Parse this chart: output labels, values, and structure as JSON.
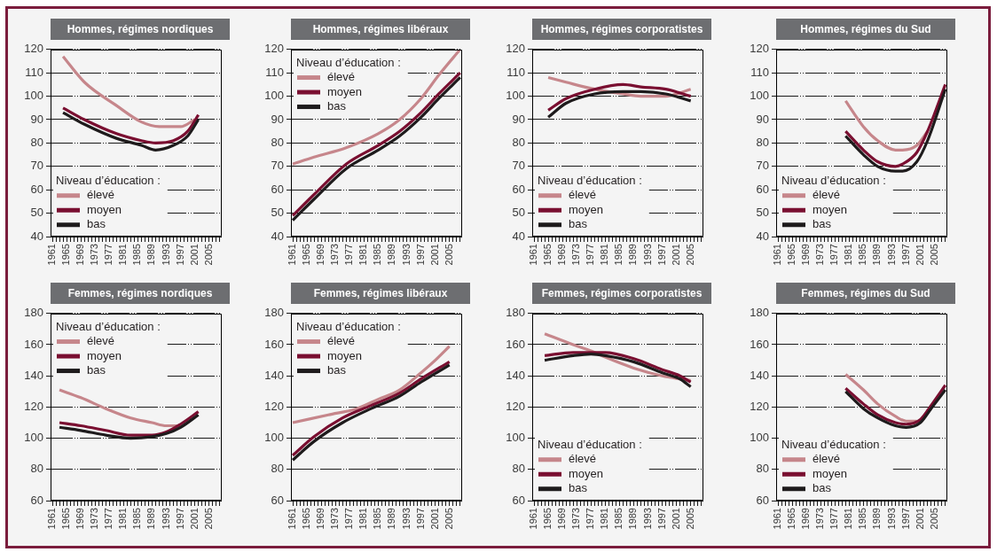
{
  "chart_data": [
    {
      "type": "line",
      "title": "Hommes, régimes nordiques",
      "legend_title": "Niveau d’éducation :",
      "legend": "bottom left",
      "grid": "y",
      "xlim": [
        1960.5,
        2008.5
      ],
      "ylim": [
        40,
        120
      ],
      "yticks": [
        40,
        50,
        60,
        70,
        80,
        90,
        100,
        110,
        120
      ],
      "xticks": [
        1961,
        {
          "value": 1962,
          "label": null
        },
        {
          "value": 1963,
          "label": null
        },
        {
          "value": 1964,
          "label": null
        },
        1965,
        {
          "value": 1966,
          "label": null
        },
        {
          "value": 1967,
          "label": null
        },
        {
          "value": 1968,
          "label": null
        },
        1969,
        {
          "value": 1970,
          "label": null
        },
        {
          "value": 1971,
          "label": null
        },
        {
          "value": 1972,
          "label": null
        },
        1973,
        {
          "value": 1974,
          "label": null
        },
        {
          "value": 1975,
          "label": null
        },
        {
          "value": 1976,
          "label": null
        },
        1977,
        {
          "value": 1978,
          "label": null
        },
        {
          "value": 1979,
          "label": null
        },
        {
          "value": 1980,
          "label": null
        },
        1981,
        {
          "value": 1982,
          "label": null
        },
        {
          "value": 1983,
          "label": null
        },
        {
          "value": 1984,
          "label": null
        },
        1985,
        {
          "value": 1986,
          "label": null
        },
        {
          "value": 1987,
          "label": null
        },
        {
          "value": 1988,
          "label": null
        },
        1989,
        {
          "value": 1990,
          "label": null
        },
        {
          "value": 1991,
          "label": null
        },
        {
          "value": 1992,
          "label": null
        },
        1993,
        {
          "value": 1994,
          "label": null
        },
        {
          "value": 1995,
          "label": null
        },
        {
          "value": 1996,
          "label": null
        },
        1997,
        {
          "value": 1998,
          "label": null
        },
        {
          "value": 1999,
          "label": null
        },
        {
          "value": 2000,
          "label": null
        },
        2001,
        {
          "value": 2002,
          "label": null
        },
        {
          "value": 2003,
          "label": null
        },
        {
          "value": 2004,
          "label": null
        },
        2005,
        {
          "value": 2006,
          "label": null
        },
        {
          "value": 2007,
          "label": null
        },
        {
          "value": 2008,
          "label": null
        }
      ],
      "series": [
        {
          "name": "élevé",
          "color": "#c6868b",
          "x": [
            1964,
            1970,
            1979,
            1986,
            1991,
            1997,
            2001
          ],
          "values": [
            117,
            106,
            96,
            89,
            87,
            87,
            90
          ]
        },
        {
          "name": "moyen",
          "color": "#7a0f31",
          "x": [
            1964,
            1970,
            1979,
            1986,
            1990,
            1995,
            1999,
            2002
          ],
          "values": [
            95,
            90,
            84,
            81,
            80,
            81,
            85,
            92
          ]
        },
        {
          "name": "bas",
          "color": "#1e1b1c",
          "x": [
            1964,
            1970,
            1979,
            1986,
            1990,
            1995,
            1999,
            2002
          ],
          "values": [
            93,
            88,
            82,
            79,
            77,
            79,
            83,
            90
          ]
        }
      ]
    },
    {
      "type": "line",
      "title": "Hommes, régimes libéraux",
      "legend_title": "Niveau d’éducation :",
      "legend": "top left",
      "grid": "y",
      "xlim": [
        1960.5,
        2008.5
      ],
      "ylim": [
        40,
        120
      ],
      "yticks": [
        40,
        50,
        60,
        70,
        80,
        90,
        100,
        110,
        120
      ],
      "xticks": [
        1961,
        {
          "value": 1962,
          "label": null
        },
        {
          "value": 1963,
          "label": null
        },
        {
          "value": 1964,
          "label": null
        },
        1965,
        {
          "value": 1966,
          "label": null
        },
        {
          "value": 1967,
          "label": null
        },
        {
          "value": 1968,
          "label": null
        },
        1969,
        {
          "value": 1970,
          "label": null
        },
        {
          "value": 1971,
          "label": null
        },
        {
          "value": 1972,
          "label": null
        },
        1973,
        {
          "value": 1974,
          "label": null
        },
        {
          "value": 1975,
          "label": null
        },
        {
          "value": 1976,
          "label": null
        },
        1977,
        {
          "value": 1978,
          "label": null
        },
        {
          "value": 1979,
          "label": null
        },
        {
          "value": 1980,
          "label": null
        },
        1981,
        {
          "value": 1982,
          "label": null
        },
        {
          "value": 1983,
          "label": null
        },
        {
          "value": 1984,
          "label": null
        },
        1985,
        {
          "value": 1986,
          "label": null
        },
        {
          "value": 1987,
          "label": null
        },
        {
          "value": 1988,
          "label": null
        },
        1989,
        {
          "value": 1990,
          "label": null
        },
        {
          "value": 1991,
          "label": null
        },
        {
          "value": 1992,
          "label": null
        },
        1993,
        {
          "value": 1994,
          "label": null
        },
        {
          "value": 1995,
          "label": null
        },
        {
          "value": 1996,
          "label": null
        },
        1997,
        {
          "value": 1998,
          "label": null
        },
        {
          "value": 1999,
          "label": null
        },
        {
          "value": 2000,
          "label": null
        },
        2001,
        {
          "value": 2002,
          "label": null
        },
        {
          "value": 2003,
          "label": null
        },
        {
          "value": 2004,
          "label": null
        },
        2005,
        {
          "value": 2006,
          "label": null
        },
        {
          "value": 2007,
          "label": null
        },
        {
          "value": 2008,
          "label": null
        }
      ],
      "series": [
        {
          "name": "élevé",
          "color": "#c6868b",
          "x": [
            1961,
            1967,
            1976,
            1985,
            1991,
            1997,
            2002,
            2008
          ],
          "values": [
            71,
            74,
            78,
            84,
            90,
            99,
            109,
            120
          ]
        },
        {
          "name": "moyen",
          "color": "#7a0f31",
          "x": [
            1961,
            1967,
            1976,
            1985,
            1991,
            1997,
            2002,
            2008
          ],
          "values": [
            49,
            58,
            71,
            79,
            85,
            93,
            101,
            110
          ]
        },
        {
          "name": "bas",
          "color": "#1e1b1c",
          "x": [
            1961,
            1967,
            1976,
            1985,
            1991,
            1997,
            2002,
            2008
          ],
          "values": [
            47,
            56,
            69,
            77,
            83,
            91,
            99,
            108
          ]
        }
      ]
    },
    {
      "type": "line",
      "title": "Hommes, régimes corporatistes",
      "legend_title": "Niveau d’éducation :",
      "legend": "bottom left",
      "grid": "y",
      "xlim": [
        1960.5,
        2008.5
      ],
      "ylim": [
        40,
        120
      ],
      "yticks": [
        40,
        50,
        60,
        70,
        80,
        90,
        100,
        110,
        120
      ],
      "xticks": [
        1961,
        {
          "value": 1962,
          "label": null
        },
        {
          "value": 1963,
          "label": null
        },
        {
          "value": 1964,
          "label": null
        },
        1965,
        {
          "value": 1966,
          "label": null
        },
        {
          "value": 1967,
          "label": null
        },
        {
          "value": 1968,
          "label": null
        },
        1969,
        {
          "value": 1970,
          "label": null
        },
        {
          "value": 1971,
          "label": null
        },
        {
          "value": 1972,
          "label": null
        },
        1973,
        {
          "value": 1974,
          "label": null
        },
        {
          "value": 1975,
          "label": null
        },
        {
          "value": 1976,
          "label": null
        },
        1977,
        {
          "value": 1978,
          "label": null
        },
        {
          "value": 1979,
          "label": null
        },
        {
          "value": 1980,
          "label": null
        },
        1981,
        {
          "value": 1982,
          "label": null
        },
        {
          "value": 1983,
          "label": null
        },
        {
          "value": 1984,
          "label": null
        },
        1985,
        {
          "value": 1986,
          "label": null
        },
        {
          "value": 1987,
          "label": null
        },
        {
          "value": 1988,
          "label": null
        },
        1989,
        {
          "value": 1990,
          "label": null
        },
        {
          "value": 1991,
          "label": null
        },
        {
          "value": 1992,
          "label": null
        },
        1993,
        {
          "value": 1994,
          "label": null
        },
        {
          "value": 1995,
          "label": null
        },
        {
          "value": 1996,
          "label": null
        },
        1997,
        {
          "value": 1998,
          "label": null
        },
        {
          "value": 1999,
          "label": null
        },
        {
          "value": 2000,
          "label": null
        },
        2001,
        {
          "value": 2002,
          "label": null
        },
        {
          "value": 2003,
          "label": null
        },
        {
          "value": 2004,
          "label": null
        },
        2005,
        {
          "value": 2006,
          "label": null
        },
        {
          "value": 2007,
          "label": null
        },
        {
          "value": 2008,
          "label": null
        }
      ],
      "series": [
        {
          "name": "élevé",
          "color": "#c6868b",
          "x": [
            1965,
            1970,
            1978,
            1986,
            1991,
            1998,
            2005
          ],
          "values": [
            108,
            106,
            103,
            101,
            100,
            100,
            103
          ]
        },
        {
          "name": "moyen",
          "color": "#7a0f31",
          "x": [
            1965,
            1970,
            1978,
            1986,
            1991,
            1998,
            2005
          ],
          "values": [
            94,
            99,
            103,
            105,
            104,
            103,
            100
          ]
        },
        {
          "name": "bas",
          "color": "#1e1b1c",
          "x": [
            1965,
            1970,
            1978,
            1986,
            1991,
            1998,
            2005
          ],
          "values": [
            91,
            97,
            101,
            102,
            102,
            101,
            98
          ]
        }
      ]
    },
    {
      "type": "line",
      "title": "Hommes, régimes du Sud",
      "legend_title": "Niveau d’éducation :",
      "legend": "bottom left",
      "grid": "y",
      "xlim": [
        1960.5,
        2008.5
      ],
      "ylim": [
        40,
        120
      ],
      "yticks": [
        40,
        50,
        60,
        70,
        80,
        90,
        100,
        110,
        120
      ],
      "xticks": [
        1961,
        {
          "value": 1962,
          "label": null
        },
        {
          "value": 1963,
          "label": null
        },
        {
          "value": 1964,
          "label": null
        },
        1965,
        {
          "value": 1966,
          "label": null
        },
        {
          "value": 1967,
          "label": null
        },
        {
          "value": 1968,
          "label": null
        },
        1969,
        {
          "value": 1970,
          "label": null
        },
        {
          "value": 1971,
          "label": null
        },
        {
          "value": 1972,
          "label": null
        },
        1973,
        {
          "value": 1974,
          "label": null
        },
        {
          "value": 1975,
          "label": null
        },
        {
          "value": 1976,
          "label": null
        },
        1977,
        {
          "value": 1978,
          "label": null
        },
        {
          "value": 1979,
          "label": null
        },
        {
          "value": 1980,
          "label": null
        },
        1981,
        {
          "value": 1982,
          "label": null
        },
        {
          "value": 1983,
          "label": null
        },
        {
          "value": 1984,
          "label": null
        },
        1985,
        {
          "value": 1986,
          "label": null
        },
        {
          "value": 1987,
          "label": null
        },
        {
          "value": 1988,
          "label": null
        },
        1989,
        {
          "value": 1990,
          "label": null
        },
        {
          "value": 1991,
          "label": null
        },
        {
          "value": 1992,
          "label": null
        },
        1993,
        {
          "value": 1994,
          "label": null
        },
        {
          "value": 1995,
          "label": null
        },
        {
          "value": 1996,
          "label": null
        },
        1997,
        {
          "value": 1998,
          "label": null
        },
        {
          "value": 1999,
          "label": null
        },
        {
          "value": 2000,
          "label": null
        },
        2001,
        {
          "value": 2002,
          "label": null
        },
        {
          "value": 2003,
          "label": null
        },
        {
          "value": 2004,
          "label": null
        },
        2005,
        {
          "value": 2006,
          "label": null
        },
        {
          "value": 2007,
          "label": null
        },
        {
          "value": 2008,
          "label": null
        }
      ],
      "series": [
        {
          "name": "élevé",
          "color": "#c6868b",
          "x": [
            1980,
            1985,
            1989,
            1994,
            1996,
            2000,
            2003
          ],
          "values": [
            98,
            87,
            81,
            77,
            77,
            79,
            85
          ]
        },
        {
          "name": "moyen",
          "color": "#7a0f31",
          "x": [
            1980,
            1985,
            1989,
            1994,
            1996,
            2000,
            2003,
            2008
          ],
          "values": [
            85,
            77,
            72,
            70,
            71,
            76,
            85,
            105
          ]
        },
        {
          "name": "bas",
          "color": "#1e1b1c",
          "x": [
            1980,
            1985,
            1989,
            1994,
            1996,
            2000,
            2003,
            2008
          ],
          "values": [
            83,
            75,
            70,
            68,
            68,
            72,
            81,
            103
          ]
        }
      ]
    },
    {
      "type": "line",
      "title": "Femmes, régimes nordiques",
      "legend_title": "Niveau d’éducation :",
      "legend": "top left",
      "grid": "y",
      "xlim": [
        1960.5,
        2008.5
      ],
      "ylim": [
        60,
        180
      ],
      "yticks": [
        60,
        80,
        100,
        120,
        140,
        160,
        180
      ],
      "xticks": [
        1961,
        {
          "value": 1962,
          "label": null
        },
        {
          "value": 1963,
          "label": null
        },
        {
          "value": 1964,
          "label": null
        },
        1965,
        {
          "value": 1966,
          "label": null
        },
        {
          "value": 1967,
          "label": null
        },
        {
          "value": 1968,
          "label": null
        },
        1969,
        {
          "value": 1970,
          "label": null
        },
        {
          "value": 1971,
          "label": null
        },
        {
          "value": 1972,
          "label": null
        },
        1973,
        {
          "value": 1974,
          "label": null
        },
        {
          "value": 1975,
          "label": null
        },
        {
          "value": 1976,
          "label": null
        },
        1977,
        {
          "value": 1978,
          "label": null
        },
        {
          "value": 1979,
          "label": null
        },
        {
          "value": 1980,
          "label": null
        },
        1981,
        {
          "value": 1982,
          "label": null
        },
        {
          "value": 1983,
          "label": null
        },
        {
          "value": 1984,
          "label": null
        },
        1985,
        {
          "value": 1986,
          "label": null
        },
        {
          "value": 1987,
          "label": null
        },
        {
          "value": 1988,
          "label": null
        },
        1989,
        {
          "value": 1990,
          "label": null
        },
        {
          "value": 1991,
          "label": null
        },
        {
          "value": 1992,
          "label": null
        },
        1993,
        {
          "value": 1994,
          "label": null
        },
        {
          "value": 1995,
          "label": null
        },
        {
          "value": 1996,
          "label": null
        },
        1997,
        {
          "value": 1998,
          "label": null
        },
        {
          "value": 1999,
          "label": null
        },
        {
          "value": 2000,
          "label": null
        },
        2001,
        {
          "value": 2002,
          "label": null
        },
        {
          "value": 2003,
          "label": null
        },
        {
          "value": 2004,
          "label": null
        },
        2005,
        {
          "value": 2006,
          "label": null
        },
        {
          "value": 2007,
          "label": null
        },
        {
          "value": 2008,
          "label": null
        }
      ],
      "series": [
        {
          "name": "élevé",
          "color": "#c6868b",
          "x": [
            1963,
            1969,
            1976,
            1983,
            1989,
            1993,
            1997
          ],
          "values": [
            131,
            126,
            119,
            113,
            110,
            108,
            108
          ]
        },
        {
          "name": "moyen",
          "color": "#7a0f31",
          "x": [
            1963,
            1969,
            1976,
            1983,
            1989,
            1993,
            1997,
            2002
          ],
          "values": [
            110,
            108,
            105,
            102,
            102,
            104,
            109,
            117
          ]
        },
        {
          "name": "bas",
          "color": "#1e1b1c",
          "x": [
            1963,
            1969,
            1976,
            1983,
            1989,
            1993,
            1997,
            2002
          ],
          "values": [
            107,
            105,
            102,
            100,
            101,
            103,
            107,
            115
          ]
        }
      ]
    },
    {
      "type": "line",
      "title": "Femmes, régimes libéraux",
      "legend_title": "Niveau d’éducation :",
      "legend": "top left",
      "grid": "y",
      "xlim": [
        1960.5,
        2008.5
      ],
      "ylim": [
        60,
        180
      ],
      "yticks": [
        60,
        80,
        100,
        120,
        140,
        160,
        180
      ],
      "xticks": [
        1961,
        {
          "value": 1962,
          "label": null
        },
        {
          "value": 1963,
          "label": null
        },
        {
          "value": 1964,
          "label": null
        },
        1965,
        {
          "value": 1966,
          "label": null
        },
        {
          "value": 1967,
          "label": null
        },
        {
          "value": 1968,
          "label": null
        },
        1969,
        {
          "value": 1970,
          "label": null
        },
        {
          "value": 1971,
          "label": null
        },
        {
          "value": 1972,
          "label": null
        },
        1973,
        {
          "value": 1974,
          "label": null
        },
        {
          "value": 1975,
          "label": null
        },
        {
          "value": 1976,
          "label": null
        },
        1977,
        {
          "value": 1978,
          "label": null
        },
        {
          "value": 1979,
          "label": null
        },
        {
          "value": 1980,
          "label": null
        },
        1981,
        {
          "value": 1982,
          "label": null
        },
        {
          "value": 1983,
          "label": null
        },
        {
          "value": 1984,
          "label": null
        },
        1985,
        {
          "value": 1986,
          "label": null
        },
        {
          "value": 1987,
          "label": null
        },
        {
          "value": 1988,
          "label": null
        },
        1989,
        {
          "value": 1990,
          "label": null
        },
        {
          "value": 1991,
          "label": null
        },
        {
          "value": 1992,
          "label": null
        },
        1993,
        {
          "value": 1994,
          "label": null
        },
        {
          "value": 1995,
          "label": null
        },
        {
          "value": 1996,
          "label": null
        },
        1997,
        {
          "value": 1998,
          "label": null
        },
        {
          "value": 1999,
          "label": null
        },
        {
          "value": 2000,
          "label": null
        },
        2001,
        {
          "value": 2002,
          "label": null
        },
        {
          "value": 2003,
          "label": null
        },
        {
          "value": 2004,
          "label": null
        },
        2005,
        {
          "value": 2006,
          "label": null
        },
        {
          "value": 2007,
          "label": null
        },
        {
          "value": 2008,
          "label": null
        }
      ],
      "series": [
        {
          "name": "élevé",
          "color": "#c6868b",
          "x": [
            1961,
            1971,
            1979,
            1985,
            1991,
            1997,
            2001,
            2005
          ],
          "values": [
            110,
            115,
            119,
            125,
            131,
            142,
            150,
            159
          ]
        },
        {
          "name": "moyen",
          "color": "#7a0f31",
          "x": [
            1961,
            1967,
            1975,
            1983,
            1991,
            1997,
            2005
          ],
          "values": [
            89,
            101,
            113,
            121,
            129,
            138,
            149
          ]
        },
        {
          "name": "bas",
          "color": "#1e1b1c",
          "x": [
            1961,
            1967,
            1975,
            1983,
            1991,
            1997,
            2005
          ],
          "values": [
            86,
            98,
            110,
            119,
            127,
            136,
            147
          ]
        }
      ]
    },
    {
      "type": "line",
      "title": "Femmes, régimes corporatistes",
      "legend_title": "Niveau d’éducation :",
      "legend": "bottom left",
      "grid": "y",
      "xlim": [
        1960.5,
        2008.5
      ],
      "ylim": [
        60,
        180
      ],
      "yticks": [
        60,
        80,
        100,
        120,
        140,
        160,
        180
      ],
      "xticks": [
        1961,
        {
          "value": 1962,
          "label": null
        },
        {
          "value": 1963,
          "label": null
        },
        {
          "value": 1964,
          "label": null
        },
        1965,
        {
          "value": 1966,
          "label": null
        },
        {
          "value": 1967,
          "label": null
        },
        {
          "value": 1968,
          "label": null
        },
        1969,
        {
          "value": 1970,
          "label": null
        },
        {
          "value": 1971,
          "label": null
        },
        {
          "value": 1972,
          "label": null
        },
        1973,
        {
          "value": 1974,
          "label": null
        },
        {
          "value": 1975,
          "label": null
        },
        {
          "value": 1976,
          "label": null
        },
        1977,
        {
          "value": 1978,
          "label": null
        },
        {
          "value": 1979,
          "label": null
        },
        {
          "value": 1980,
          "label": null
        },
        1981,
        {
          "value": 1982,
          "label": null
        },
        {
          "value": 1983,
          "label": null
        },
        {
          "value": 1984,
          "label": null
        },
        1985,
        {
          "value": 1986,
          "label": null
        },
        {
          "value": 1987,
          "label": null
        },
        {
          "value": 1988,
          "label": null
        },
        1989,
        {
          "value": 1990,
          "label": null
        },
        {
          "value": 1991,
          "label": null
        },
        {
          "value": 1992,
          "label": null
        },
        1993,
        {
          "value": 1994,
          "label": null
        },
        {
          "value": 1995,
          "label": null
        },
        {
          "value": 1996,
          "label": null
        },
        1997,
        {
          "value": 1998,
          "label": null
        },
        {
          "value": 1999,
          "label": null
        },
        {
          "value": 2000,
          "label": null
        },
        2001,
        {
          "value": 2002,
          "label": null
        },
        {
          "value": 2003,
          "label": null
        },
        {
          "value": 2004,
          "label": null
        },
        2005,
        {
          "value": 2006,
          "label": null
        },
        {
          "value": 2007,
          "label": null
        },
        {
          "value": 2008,
          "label": null
        }
      ],
      "series": [
        {
          "name": "élevé",
          "color": "#c6868b",
          "x": [
            1964,
            1972,
            1977,
            1981,
            1989,
            1997,
            2002,
            2005
          ],
          "values": [
            167,
            160,
            156,
            152,
            145,
            140,
            138,
            137
          ]
        },
        {
          "name": "moyen",
          "color": "#7a0f31",
          "x": [
            1964,
            1972,
            1977,
            1981,
            1989,
            1997,
            2002,
            2005
          ],
          "values": [
            153,
            155,
            155,
            155,
            151,
            144,
            140,
            136
          ]
        },
        {
          "name": "bas",
          "color": "#1e1b1c",
          "x": [
            1964,
            1972,
            1977,
            1981,
            1989,
            1997,
            2002,
            2005
          ],
          "values": [
            150,
            153,
            154,
            153,
            149,
            142,
            138,
            133
          ]
        }
      ]
    },
    {
      "type": "line",
      "title": "Femmes, régimes du Sud",
      "legend_title": "Niveau d’éducation :",
      "legend": "bottom left",
      "grid": "y",
      "xlim": [
        1960.5,
        2008.5
      ],
      "ylim": [
        60,
        180
      ],
      "yticks": [
        60,
        80,
        100,
        120,
        140,
        160,
        180
      ],
      "xticks": [
        1961,
        {
          "value": 1962,
          "label": null
        },
        {
          "value": 1963,
          "label": null
        },
        {
          "value": 1964,
          "label": null
        },
        1965,
        {
          "value": 1966,
          "label": null
        },
        {
          "value": 1967,
          "label": null
        },
        {
          "value": 1968,
          "label": null
        },
        1969,
        {
          "value": 1970,
          "label": null
        },
        {
          "value": 1971,
          "label": null
        },
        {
          "value": 1972,
          "label": null
        },
        1973,
        {
          "value": 1974,
          "label": null
        },
        {
          "value": 1975,
          "label": null
        },
        {
          "value": 1976,
          "label": null
        },
        1977,
        {
          "value": 1978,
          "label": null
        },
        {
          "value": 1979,
          "label": null
        },
        {
          "value": 1980,
          "label": null
        },
        1981,
        {
          "value": 1982,
          "label": null
        },
        {
          "value": 1983,
          "label": null
        },
        {
          "value": 1984,
          "label": null
        },
        1985,
        {
          "value": 1986,
          "label": null
        },
        {
          "value": 1987,
          "label": null
        },
        {
          "value": 1988,
          "label": null
        },
        1989,
        {
          "value": 1990,
          "label": null
        },
        {
          "value": 1991,
          "label": null
        },
        {
          "value": 1992,
          "label": null
        },
        1993,
        {
          "value": 1994,
          "label": null
        },
        {
          "value": 1995,
          "label": null
        },
        {
          "value": 1996,
          "label": null
        },
        1997,
        {
          "value": 1998,
          "label": null
        },
        {
          "value": 1999,
          "label": null
        },
        {
          "value": 2000,
          "label": null
        },
        2001,
        {
          "value": 2002,
          "label": null
        },
        {
          "value": 2003,
          "label": null
        },
        {
          "value": 2004,
          "label": null
        },
        2005,
        {
          "value": 2006,
          "label": null
        },
        {
          "value": 2007,
          "label": null
        },
        {
          "value": 2008,
          "label": null
        }
      ],
      "series": [
        {
          "name": "élevé",
          "color": "#c6868b",
          "x": [
            1980,
            1985,
            1989,
            1994,
            1997,
            2000
          ],
          "values": [
            141,
            131,
            122,
            114,
            111,
            111
          ]
        },
        {
          "name": "moyen",
          "color": "#7a0f31",
          "x": [
            1980,
            1985,
            1989,
            1994,
            1997,
            2001,
            2004,
            2008
          ],
          "values": [
            132,
            122,
            115,
            110,
            109,
            112,
            121,
            134
          ]
        },
        {
          "name": "bas",
          "color": "#1e1b1c",
          "x": [
            1980,
            1985,
            1989,
            1994,
            1997,
            2001,
            2004,
            2008
          ],
          "values": [
            130,
            119,
            113,
            108,
            107,
            110,
            119,
            131
          ]
        }
      ]
    }
  ]
}
